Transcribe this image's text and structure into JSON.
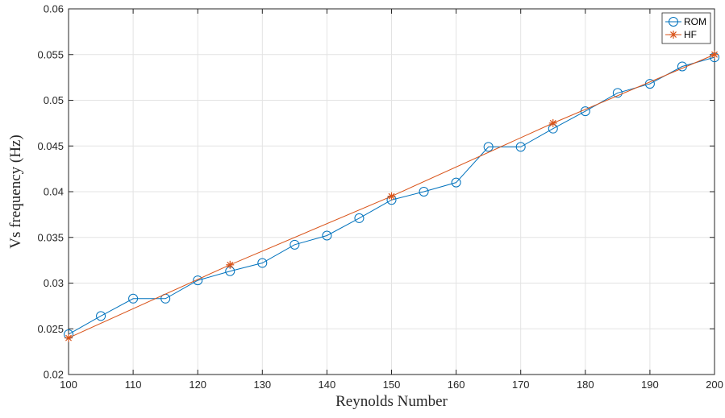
{
  "chart_data": {
    "type": "line",
    "title": "",
    "xlabel": "Reynolds Number",
    "ylabel": "Vs frequency (Hz)",
    "xlim": [
      100,
      200
    ],
    "ylim": [
      0.02,
      0.06
    ],
    "xticks": [
      100,
      110,
      120,
      130,
      140,
      150,
      160,
      170,
      180,
      190,
      200
    ],
    "yticks": [
      0.02,
      0.025,
      0.03,
      0.035,
      0.04,
      0.045,
      0.05,
      0.055,
      0.06
    ],
    "grid": true,
    "legend_position": "top-right",
    "series": [
      {
        "name": "ROM",
        "color": "#0072BD",
        "marker": "circle",
        "x": [
          100,
          105,
          110,
          115,
          120,
          125,
          130,
          135,
          140,
          145,
          150,
          155,
          160,
          165,
          170,
          175,
          180,
          185,
          190,
          195,
          200
        ],
        "y": [
          0.0244,
          0.0264,
          0.0283,
          0.0283,
          0.0303,
          0.0313,
          0.0322,
          0.0342,
          0.0352,
          0.0371,
          0.0391,
          0.04,
          0.041,
          0.0449,
          0.0449,
          0.0469,
          0.0488,
          0.0508,
          0.0518,
          0.0537,
          0.0547
        ]
      },
      {
        "name": "HF",
        "color": "#D95319",
        "marker": "asterisk",
        "x": [
          100,
          125,
          150,
          175,
          200
        ],
        "y": [
          0.024,
          0.032,
          0.0395,
          0.0475,
          0.055
        ]
      }
    ]
  }
}
